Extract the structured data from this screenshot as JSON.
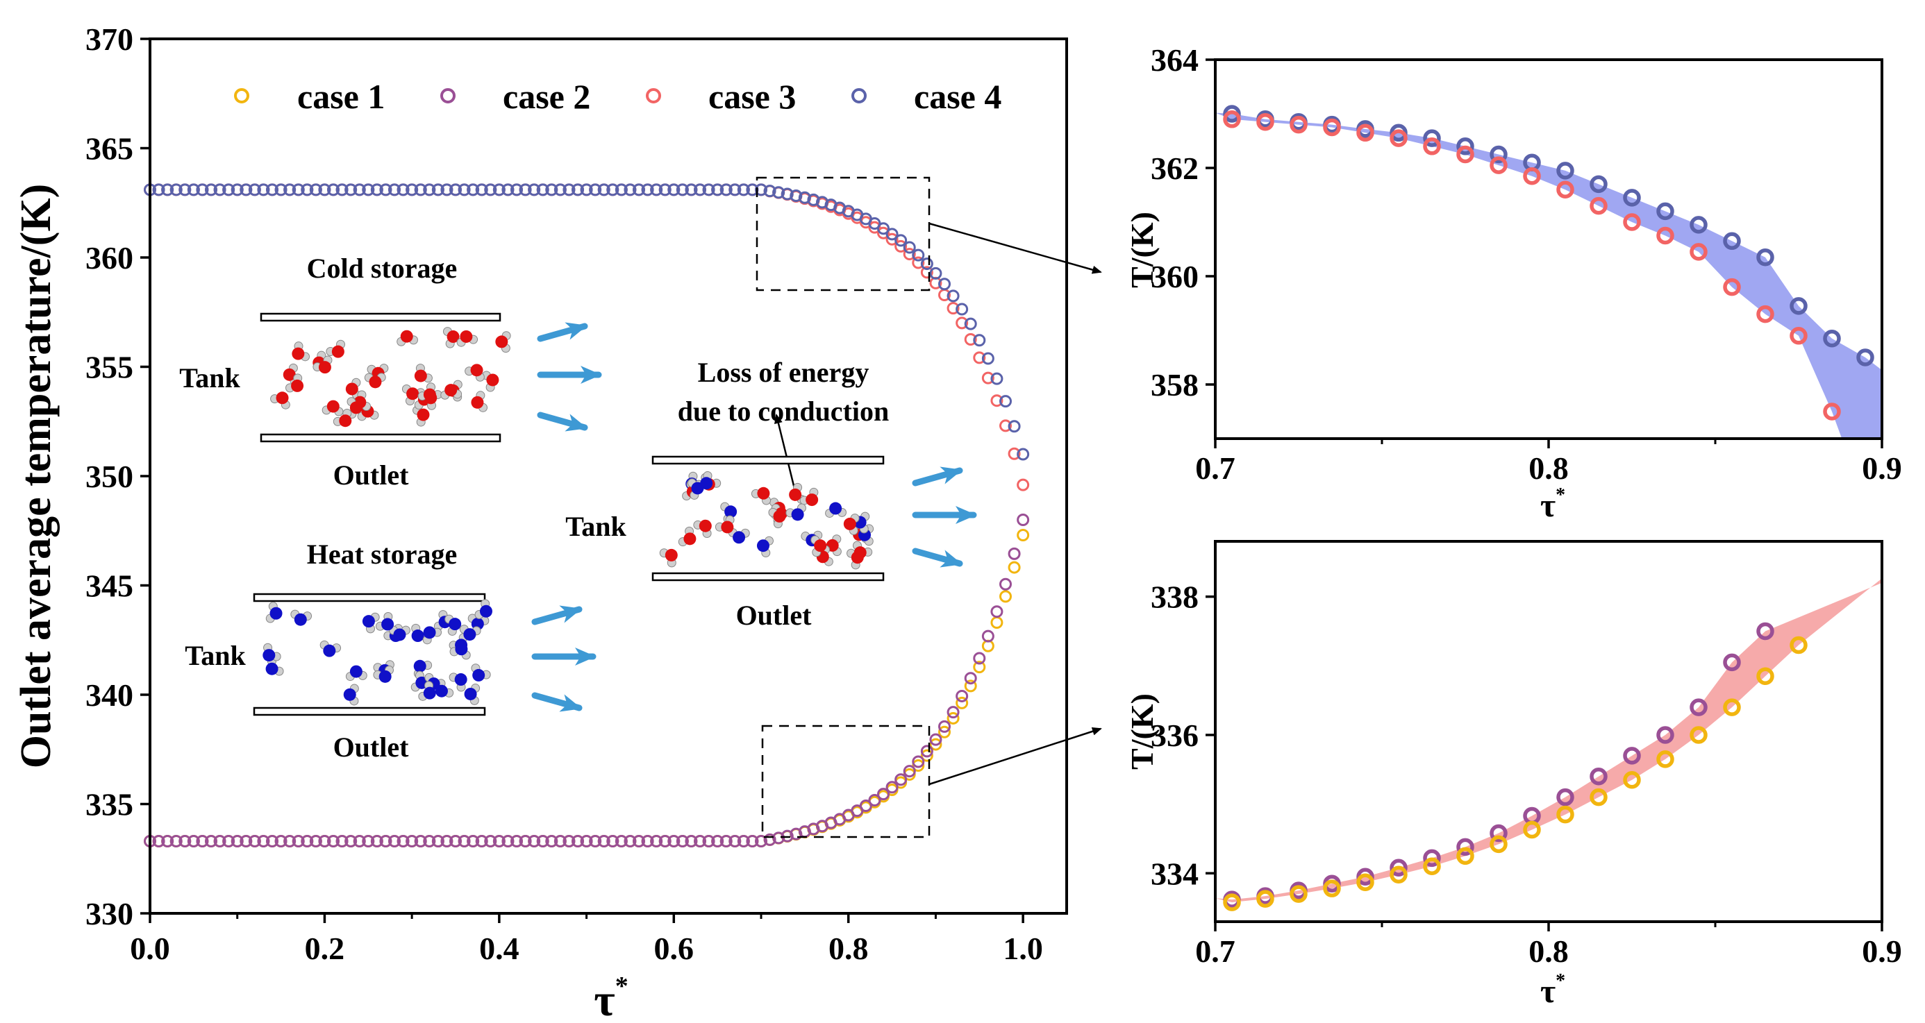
{
  "colors": {
    "case1": "#f2b50f",
    "case2": "#9a4f95",
    "case3": "#f26464",
    "case4": "#5a62aa",
    "band_blue": "#8f98f0",
    "band_red": "#f49b9b",
    "arrow": "#2a8fd0",
    "molecule_red": "#e01010",
    "molecule_blue": "#1010c8"
  },
  "chart_data": [
    {
      "type": "scatter",
      "panel": "main",
      "title": "",
      "xlabel": "τ*",
      "ylabel": "Outlet average temperature/(K)",
      "xlim": [
        0.0,
        1.05
      ],
      "ylim": [
        330,
        370
      ],
      "xticks": [
        "0.0",
        "0.2",
        "0.4",
        "0.6",
        "0.8",
        "1.0"
      ],
      "yticks": [
        "330",
        "335",
        "340",
        "345",
        "350",
        "355",
        "360",
        "365",
        "370"
      ],
      "grid": false,
      "legend": "top",
      "series": [
        {
          "name": "case 1",
          "color_key": "case1",
          "profile": "heat",
          "start": 333.3,
          "end": 347.3
        },
        {
          "name": "case 2",
          "color_key": "case2",
          "profile": "heat",
          "start": 333.3,
          "end": 348.0
        },
        {
          "name": "case 3",
          "color_key": "case3",
          "profile": "cold",
          "start": 363.1,
          "end": 349.6
        },
        {
          "name": "case 4",
          "color_key": "case4",
          "profile": "cold",
          "start": 363.1,
          "end": 351.0
        }
      ],
      "annotations": {
        "cold_storage": "Cold storage",
        "heat_storage": "Heat storage",
        "tank": "Tank",
        "outlet": "Outlet",
        "loss_line1": "Loss of energy",
        "loss_line2": "due to conduction"
      }
    },
    {
      "type": "scatter",
      "panel": "inset-top",
      "xlabel": "τ*",
      "ylabel": "T/(K)",
      "xlim": [
        0.7,
        0.9
      ],
      "ylim": [
        357,
        364
      ],
      "xticks": [
        "0.7",
        "0.8",
        "0.9"
      ],
      "yticks": [
        "358",
        "360",
        "362",
        "364"
      ],
      "band": "band_blue",
      "series": [
        {
          "name": "case 4",
          "color_key": "case4",
          "x": [
            0.705,
            0.715,
            0.725,
            0.735,
            0.745,
            0.755,
            0.765,
            0.775,
            0.785,
            0.795,
            0.805,
            0.815,
            0.825,
            0.835,
            0.845,
            0.855,
            0.865,
            0.875,
            0.885,
            0.895
          ],
          "values": [
            363.0,
            362.9,
            362.85,
            362.8,
            362.72,
            362.65,
            362.55,
            362.4,
            362.25,
            362.1,
            361.95,
            361.7,
            361.45,
            361.2,
            360.95,
            360.65,
            360.35,
            359.45,
            358.85,
            358.5
          ]
        },
        {
          "name": "case 3",
          "color_key": "case3",
          "x": [
            0.705,
            0.715,
            0.725,
            0.735,
            0.745,
            0.755,
            0.765,
            0.775,
            0.785,
            0.795,
            0.805,
            0.815,
            0.825,
            0.835,
            0.845,
            0.855,
            0.865,
            0.875,
            0.885
          ],
          "values": [
            362.9,
            362.85,
            362.8,
            362.75,
            362.65,
            362.55,
            362.4,
            362.25,
            362.05,
            361.85,
            361.6,
            361.3,
            361.0,
            360.75,
            360.45,
            359.8,
            359.3,
            358.9,
            357.5
          ]
        }
      ]
    },
    {
      "type": "scatter",
      "panel": "inset-bottom",
      "xlabel": "τ*",
      "ylabel": "T/(K)",
      "xlim": [
        0.7,
        0.9
      ],
      "ylim": [
        333.3,
        338.8
      ],
      "xticks": [
        "0.7",
        "0.8",
        "0.9"
      ],
      "yticks": [
        "334",
        "336",
        "338"
      ],
      "band": "band_red",
      "series": [
        {
          "name": "case 2",
          "color_key": "case2",
          "x": [
            0.705,
            0.715,
            0.725,
            0.735,
            0.745,
            0.755,
            0.765,
            0.775,
            0.785,
            0.795,
            0.805,
            0.815,
            0.825,
            0.835,
            0.845,
            0.855,
            0.865
          ],
          "values": [
            333.62,
            333.67,
            333.75,
            333.85,
            333.95,
            334.08,
            334.22,
            334.38,
            334.58,
            334.83,
            335.1,
            335.4,
            335.7,
            336.0,
            336.4,
            337.05,
            337.5
          ]
        },
        {
          "name": "case 1",
          "color_key": "case1",
          "x": [
            0.705,
            0.715,
            0.725,
            0.735,
            0.745,
            0.755,
            0.765,
            0.775,
            0.785,
            0.795,
            0.805,
            0.815,
            0.825,
            0.835,
            0.845,
            0.855,
            0.865,
            0.875
          ],
          "values": [
            333.58,
            333.63,
            333.7,
            333.78,
            333.87,
            333.98,
            334.1,
            334.25,
            334.42,
            334.63,
            334.85,
            335.1,
            335.35,
            335.65,
            336.0,
            336.4,
            336.85,
            337.3
          ]
        }
      ]
    }
  ]
}
